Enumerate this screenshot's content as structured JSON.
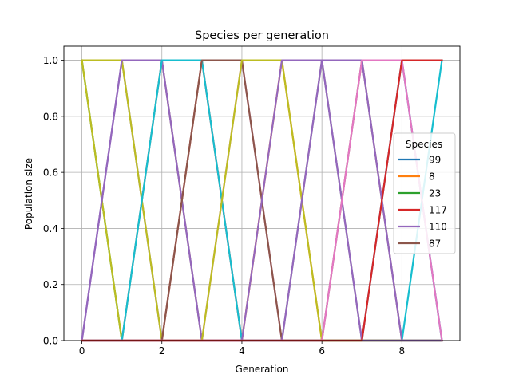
{
  "chart_data": {
    "type": "line",
    "title": "Species per generation",
    "xlabel": "Generation",
    "ylabel": "Population size",
    "xlim": [
      -0.45,
      9.45
    ],
    "ylim": [
      0.0,
      1.05
    ],
    "xticks": [
      0,
      2,
      4,
      6,
      8
    ],
    "yticks": [
      0.0,
      0.2,
      0.4,
      0.6,
      0.8,
      1.0
    ],
    "xtick_labels": [
      "0",
      "2",
      "4",
      "6",
      "8"
    ],
    "ytick_labels": [
      "0.0",
      "0.2",
      "0.4",
      "0.6",
      "0.8",
      "1.0"
    ],
    "grid": true,
    "legend": {
      "title": "Species",
      "placement": "center-right"
    },
    "x": [
      0,
      1,
      2,
      3,
      4,
      5,
      6,
      7,
      8,
      9
    ],
    "series": [
      {
        "name": "99",
        "color": "#1f77b4",
        "legend": true,
        "values": [
          0,
          0,
          0,
          0,
          0,
          0,
          0,
          0,
          1,
          0
        ]
      },
      {
        "name": "8",
        "color": "#ff7f0e",
        "legend": true,
        "values": [
          0,
          0,
          0,
          0,
          0,
          1,
          0,
          0,
          0,
          0
        ]
      },
      {
        "name": "23",
        "color": "#2ca02c",
        "legend": true,
        "values": [
          1,
          0,
          0,
          0,
          0,
          0,
          0,
          0,
          0,
          0
        ]
      },
      {
        "name": "117",
        "color": "#d62728",
        "legend": true,
        "values": [
          0,
          0,
          0,
          1,
          0,
          0,
          0,
          0,
          0,
          0
        ]
      },
      {
        "name": "110",
        "color": "#9467bd",
        "legend": true,
        "values": [
          0,
          1,
          0,
          0,
          0,
          0,
          0,
          0,
          0,
          0
        ]
      },
      {
        "name": "87",
        "color": "#8c564b",
        "legend": true,
        "values": [
          0,
          0,
          1,
          0,
          0,
          0,
          0,
          1,
          0,
          0
        ]
      },
      {
        "name": "",
        "color": "#e377c2",
        "legend": false,
        "values": [
          0,
          0,
          0,
          0,
          1,
          0,
          0,
          0,
          0,
          0
        ]
      },
      {
        "name": "",
        "color": "#7f7f7f",
        "legend": false,
        "values": [
          0,
          0,
          0,
          0,
          0,
          0,
          1,
          0,
          0,
          0
        ]
      },
      {
        "name": "",
        "color": "#bcbd22",
        "legend": false,
        "values": [
          1,
          0,
          0,
          0,
          0,
          0,
          0,
          0,
          0,
          0
        ]
      },
      {
        "name": "",
        "color": "#17becf",
        "legend": false,
        "values": [
          0,
          0,
          0,
          0,
          0,
          0,
          0,
          0,
          0,
          1
        ]
      },
      {
        "name": "",
        "color": "#1f77b4",
        "legend": false,
        "values": [
          0,
          0,
          0,
          0,
          0,
          0,
          0,
          0,
          0,
          0
        ]
      },
      {
        "name": "",
        "color": "#ff7f0e",
        "legend": false,
        "values": [
          0,
          0,
          0,
          0,
          0,
          0,
          0,
          0,
          0,
          0
        ]
      },
      {
        "name": "",
        "color": "#2ca02c",
        "legend": false,
        "values": [
          0,
          0,
          0,
          0,
          0,
          0,
          0,
          0,
          0,
          0
        ]
      },
      {
        "name": "",
        "color": "#d62728",
        "legend": false,
        "values": [
          0,
          0,
          0,
          0,
          0,
          0,
          0,
          0,
          0,
          0
        ]
      },
      {
        "name": "",
        "color": "#9467bd",
        "legend": false,
        "values": [
          0,
          0,
          0,
          0,
          0,
          0,
          0,
          0,
          0,
          0
        ]
      },
      {
        "name": "",
        "color": "#8c564b",
        "legend": false,
        "values": [
          0,
          0,
          0,
          0,
          0,
          0,
          0,
          0,
          0,
          0
        ]
      },
      {
        "name": "",
        "color": "#e377c2",
        "legend": false,
        "values": [
          0,
          0,
          0,
          0,
          0,
          0,
          0,
          0,
          0,
          0
        ]
      },
      {
        "name": "",
        "color": "#7f7f7f",
        "legend": false,
        "values": [
          0,
          0,
          0,
          0,
          0,
          0,
          0,
          0,
          0,
          0
        ]
      },
      {
        "name": "",
        "color": "#bcbd22",
        "legend": false,
        "values": [
          0,
          0,
          0,
          0,
          0,
          0,
          0,
          0,
          0,
          0
        ]
      },
      {
        "name": "",
        "color": "#17becf",
        "legend": false,
        "values": [
          0,
          0,
          0,
          0,
          0,
          0,
          0,
          0,
          0,
          0
        ]
      },
      {
        "name": "",
        "color": "#1f77b4",
        "legend": false,
        "values": [
          0,
          0,
          0,
          0,
          0,
          0,
          0,
          0,
          0,
          0
        ]
      },
      {
        "name": "",
        "color": "#ff7f0e",
        "legend": false,
        "values": [
          0,
          0,
          0,
          0,
          0,
          0,
          0,
          0,
          0,
          0
        ]
      },
      {
        "name": "",
        "color": "#2ca02c",
        "legend": false,
        "values": [
          0,
          0,
          0,
          0,
          0,
          0,
          0,
          0,
          0,
          0
        ]
      },
      {
        "name": "",
        "color": "#d62728",
        "legend": false,
        "values": [
          0,
          0,
          0,
          0,
          0,
          0,
          0,
          0,
          0,
          0
        ]
      },
      {
        "name": "",
        "color": "#bcbd22",
        "legend": false,
        "values": [
          1,
          1,
          0,
          0,
          0,
          0,
          0,
          0,
          0,
          0
        ]
      },
      {
        "name": "",
        "color": "#9467bd",
        "legend": false,
        "values": [
          0,
          1,
          1,
          0,
          0,
          0,
          0,
          0,
          0,
          0
        ]
      },
      {
        "name": "",
        "color": "#17becf",
        "legend": false,
        "values": [
          0,
          0,
          1,
          1,
          0,
          0,
          0,
          0,
          0,
          0
        ]
      },
      {
        "name": "",
        "color": "#8c564b",
        "legend": false,
        "values": [
          0,
          0,
          0,
          1,
          1,
          0,
          0,
          0,
          0,
          0
        ]
      },
      {
        "name": "",
        "color": "#bcbd22",
        "legend": false,
        "values": [
          0,
          0,
          0,
          0,
          1,
          1,
          0,
          0,
          0,
          0
        ]
      },
      {
        "name": "",
        "color": "#9467bd",
        "legend": false,
        "values": [
          0,
          0,
          0,
          0,
          0,
          1,
          1,
          0,
          0,
          0
        ]
      },
      {
        "name": "",
        "color": "#9467bd",
        "legend": false,
        "values": [
          0,
          0,
          0,
          0,
          0,
          0,
          1,
          1,
          0,
          0
        ]
      },
      {
        "name": "",
        "color": "#e377c2",
        "legend": false,
        "values": [
          0,
          0,
          0,
          0,
          0,
          0,
          0,
          1,
          1,
          0
        ]
      },
      {
        "name": "",
        "color": "#d62728",
        "legend": false,
        "values": [
          0,
          0,
          0,
          0,
          0,
          0,
          0,
          0,
          1,
          1
        ]
      }
    ]
  }
}
